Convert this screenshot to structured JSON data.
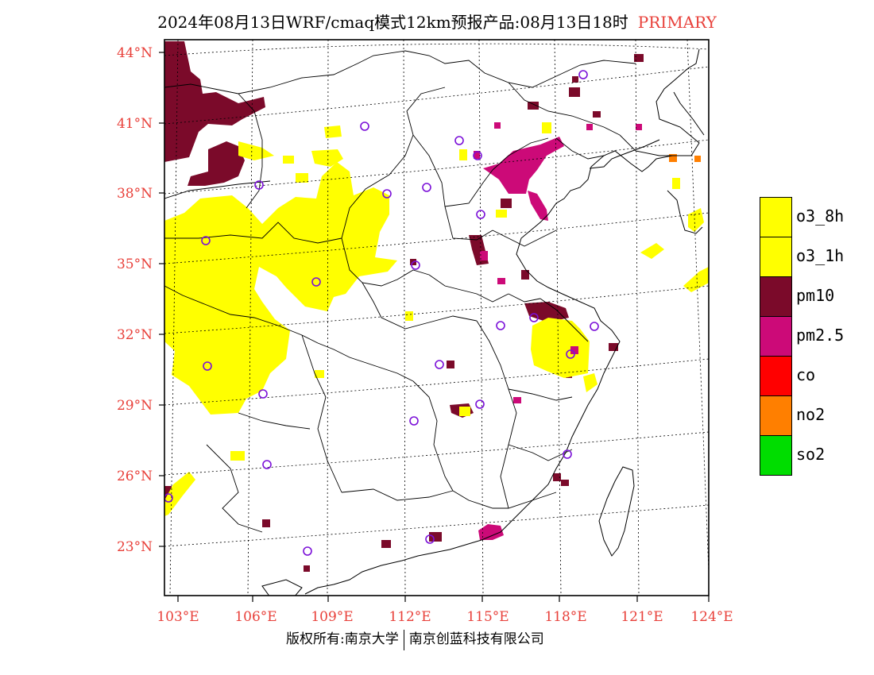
{
  "title": "2024年08月13日WRF/cmaq模式12km预报产品:08月13日18时",
  "run_label": "PRIMARY",
  "lat_labels": [
    "44°N",
    "41°N",
    "38°N",
    "35°N",
    "32°N",
    "29°N",
    "26°N",
    "23°N"
  ],
  "lon_labels": [
    "103°E",
    "106°E",
    "109°E",
    "112°E",
    "115°E",
    "118°E",
    "121°E",
    "124°E"
  ],
  "legend": [
    {
      "label": "o3_8h",
      "color": "#ffff00"
    },
    {
      "label": "o3_1h",
      "color": "#ffff00"
    },
    {
      "label": "pm10",
      "color": "#7b0a2a"
    },
    {
      "label": "pm2.5",
      "color": "#cc0a78"
    },
    {
      "label": "co",
      "color": "#ff0000"
    },
    {
      "label": "no2",
      "color": "#ff7f00"
    },
    {
      "label": "so2",
      "color": "#00dd00"
    }
  ],
  "footer": {
    "left": "版权所有:南京大学",
    "right": "南京创蓝科技有限公司"
  },
  "colors": {
    "label_red": "#e8403a",
    "o3": "#ffff00",
    "pm10": "#7b0a2a",
    "pm25": "#cc0a78",
    "site_circle": "#7b10d8"
  }
}
